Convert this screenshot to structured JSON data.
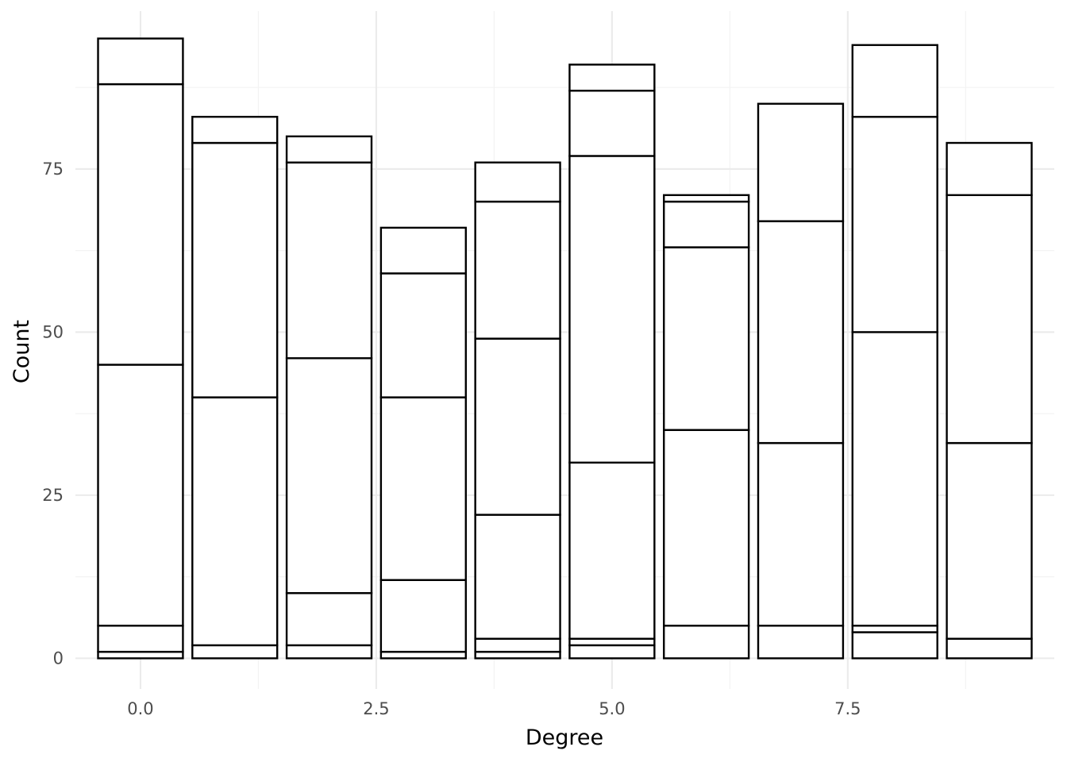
{
  "chart_data": {
    "type": "bar",
    "stacked": true,
    "xlabel": "Degree",
    "ylabel": "Count",
    "xlim": [
      -0.69,
      9.69
    ],
    "ylim": [
      -4.7,
      99.2
    ],
    "x_ticks": [
      0.0,
      2.5,
      5.0,
      7.5
    ],
    "x_tick_labels": [
      "0.0",
      "2.5",
      "5.0",
      "7.5"
    ],
    "y_ticks": [
      0,
      25,
      50,
      75
    ],
    "y_tick_labels": [
      "0",
      "25",
      "50",
      "75"
    ],
    "bar_width": 0.9,
    "grid": true,
    "legend": "none",
    "bars": [
      {
        "x": 0,
        "values": [
          1,
          4,
          40,
          43,
          7
        ]
      },
      {
        "x": 1,
        "values": [
          2,
          38,
          39,
          4
        ]
      },
      {
        "x": 2,
        "values": [
          2,
          8,
          36,
          30,
          4
        ]
      },
      {
        "x": 3,
        "values": [
          1,
          11,
          28,
          19,
          7
        ]
      },
      {
        "x": 4,
        "values": [
          1,
          2,
          19,
          27,
          21,
          6
        ]
      },
      {
        "x": 5,
        "values": [
          2,
          1,
          27,
          47,
          10,
          4
        ]
      },
      {
        "x": 6,
        "values": [
          5,
          30,
          28,
          7,
          1
        ]
      },
      {
        "x": 7,
        "values": [
          5,
          28,
          34,
          18
        ]
      },
      {
        "x": 8,
        "values": [
          4,
          1,
          45,
          33,
          11
        ]
      },
      {
        "x": 9,
        "values": [
          3,
          30,
          38,
          8
        ]
      }
    ]
  }
}
